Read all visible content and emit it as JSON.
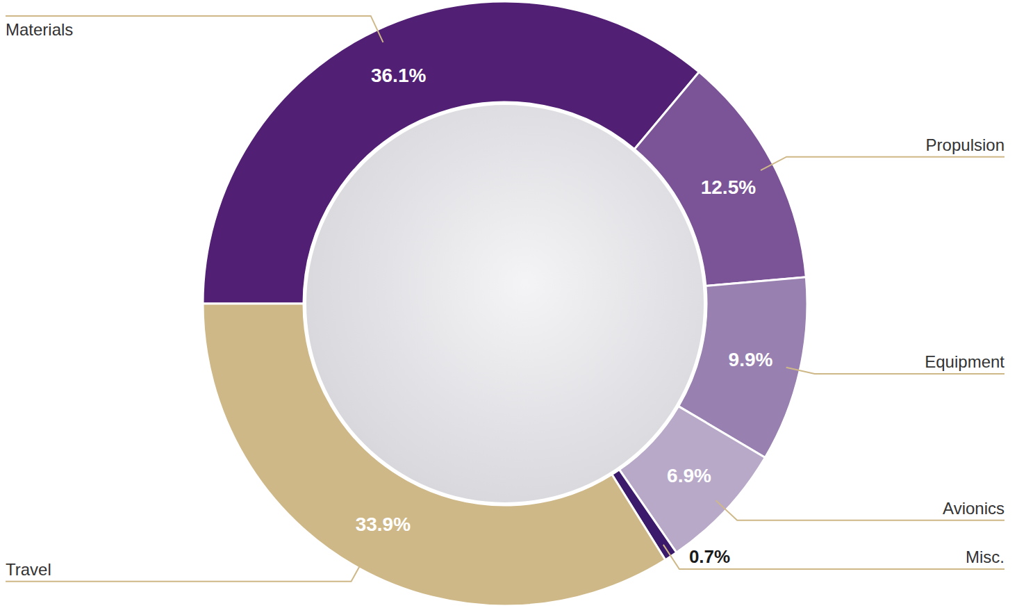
{
  "chart_data": {
    "type": "pie",
    "categories": [
      "Materials",
      "Propulsion",
      "Equipment",
      "Avionics",
      "Misc.",
      "Travel"
    ],
    "values": [
      36.1,
      12.5,
      9.9,
      6.9,
      0.7,
      33.9
    ],
    "value_labels": [
      "36.1%",
      "12.5%",
      "9.9%",
      "6.9%",
      "0.7%",
      "33.9%"
    ],
    "colors": [
      "#512074",
      "#7b5497",
      "#9880b0",
      "#b8a9c9",
      "#3c1a6b",
      "#cfb887"
    ],
    "data_labels": true
  }
}
